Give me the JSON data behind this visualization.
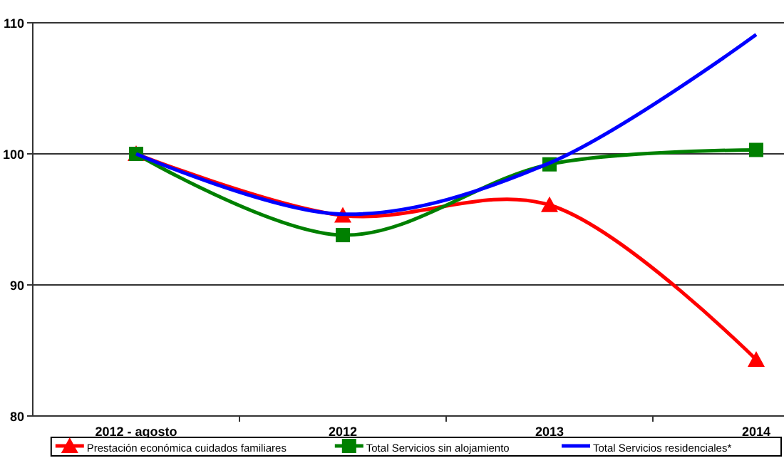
{
  "chart_data": {
    "type": "line",
    "categories": [
      "2012 - agosto",
      "2012",
      "2013",
      "2014"
    ],
    "series": [
      {
        "name": "Prestación económica cuidados familiares",
        "color": "#ff0000",
        "marker": "triangle",
        "values": [
          100,
          95.3,
          96.1,
          84.3
        ]
      },
      {
        "name": "Total Servicios sin alojamiento",
        "color": "#008000",
        "marker": "square",
        "values": [
          100,
          93.8,
          99.2,
          100.3
        ]
      },
      {
        "name": "Total Servicios residenciales*",
        "color": "#0000ff",
        "marker": "none",
        "values": [
          100,
          95.4,
          99.3,
          109.1
        ]
      }
    ],
    "ylim": [
      80,
      110
    ],
    "yticks": [
      80,
      90,
      100,
      110
    ],
    "grid": "y",
    "legend": "bottom",
    "line_style": "solid"
  }
}
